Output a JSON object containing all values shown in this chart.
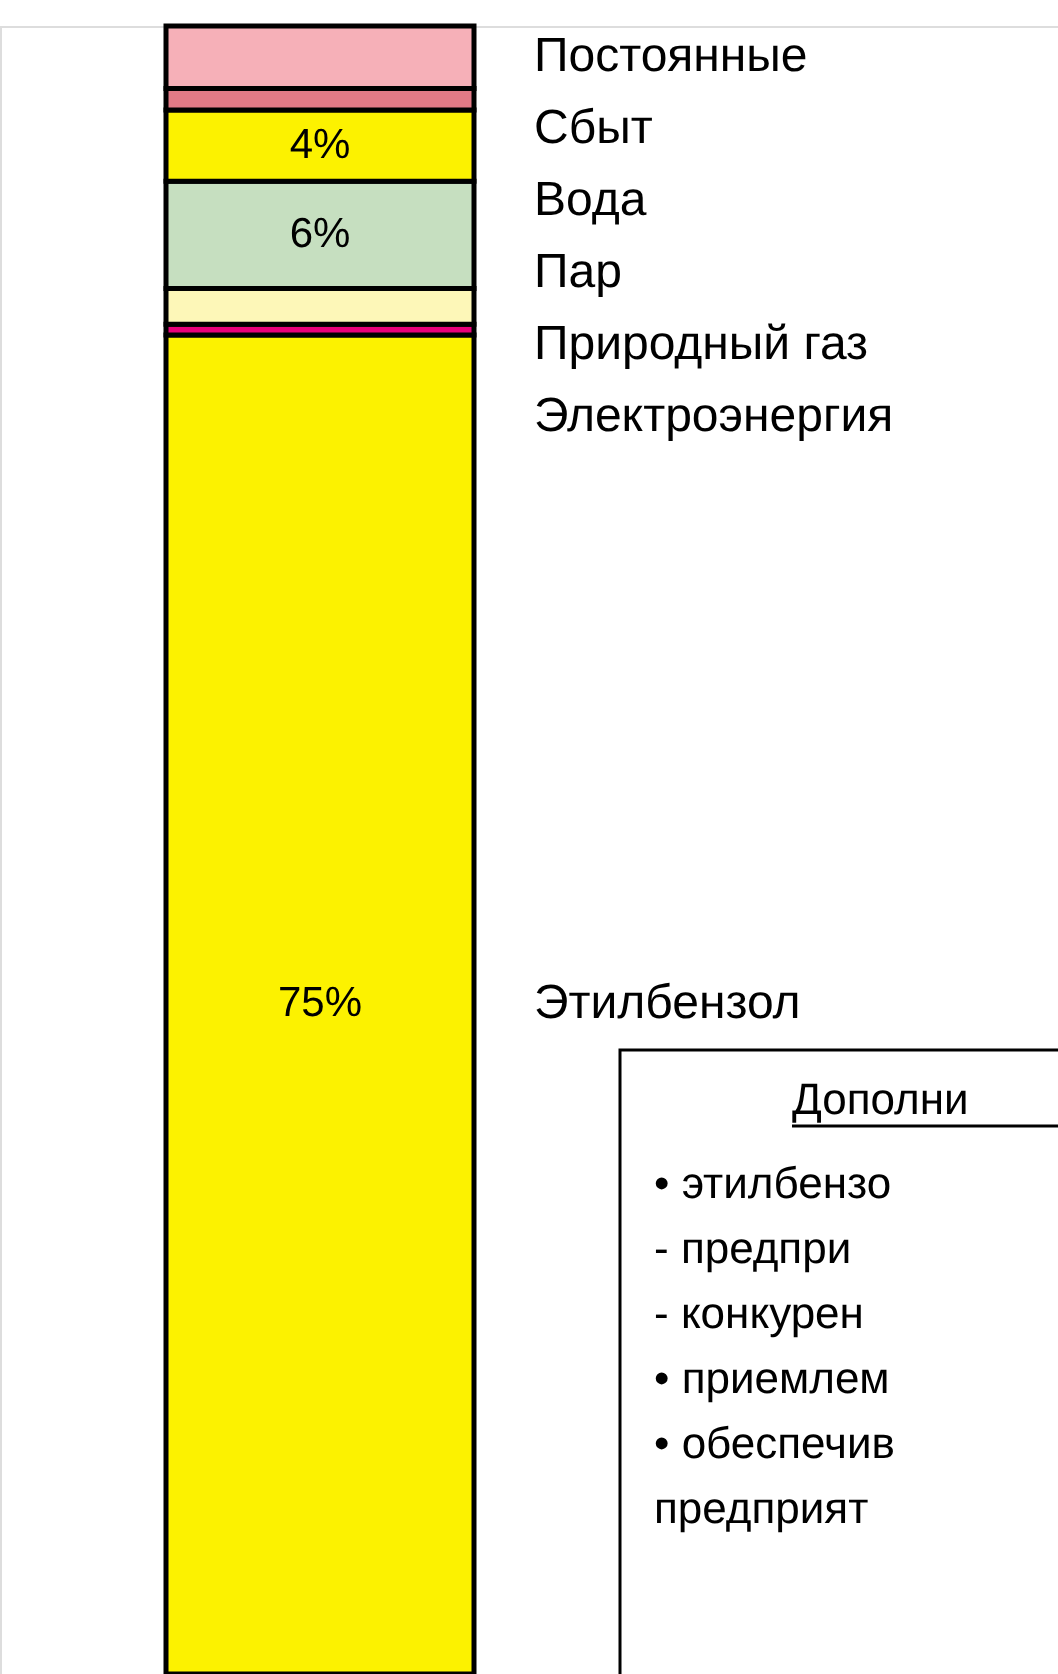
{
  "chart_data": {
    "type": "bar",
    "stacked": true,
    "categories": [
      null
    ],
    "ylim": [
      0,
      92.3
    ],
    "tick_labels": false,
    "grid": false,
    "series": [
      {
        "name": "Этилбензол",
        "color": "#fcf200",
        "values": [
          75
        ],
        "value_labels": [
          "75%"
        ]
      },
      {
        "name": "Электроэнергия",
        "color": "#e8007a",
        "values": [
          0.6
        ],
        "value_labels": [
          null
        ]
      },
      {
        "name": "Природный газ",
        "color": "#fdf7b8",
        "values": [
          2
        ],
        "value_labels": [
          null
        ]
      },
      {
        "name": "Пар",
        "color": "#c6dfc0",
        "values": [
          6
        ],
        "value_labels": [
          "6%"
        ]
      },
      {
        "name": "Вода",
        "color": "#fcf200",
        "values": [
          4
        ],
        "value_labels": [
          "4%"
        ]
      },
      {
        "name": "Сбыт",
        "color": "#e27a86",
        "values": [
          1.2
        ],
        "value_labels": [
          null
        ]
      },
      {
        "name": "Постоянные",
        "color": "#f6b0b8",
        "values": [
          3.5
        ],
        "value_labels": [
          null
        ]
      }
    ],
    "annotations": [
      "Дополни",
      "• этилбензо",
      "- предпри",
      "- конкурен",
      "• приемлем",
      "• обеспечив",
      "предприят"
    ]
  }
}
